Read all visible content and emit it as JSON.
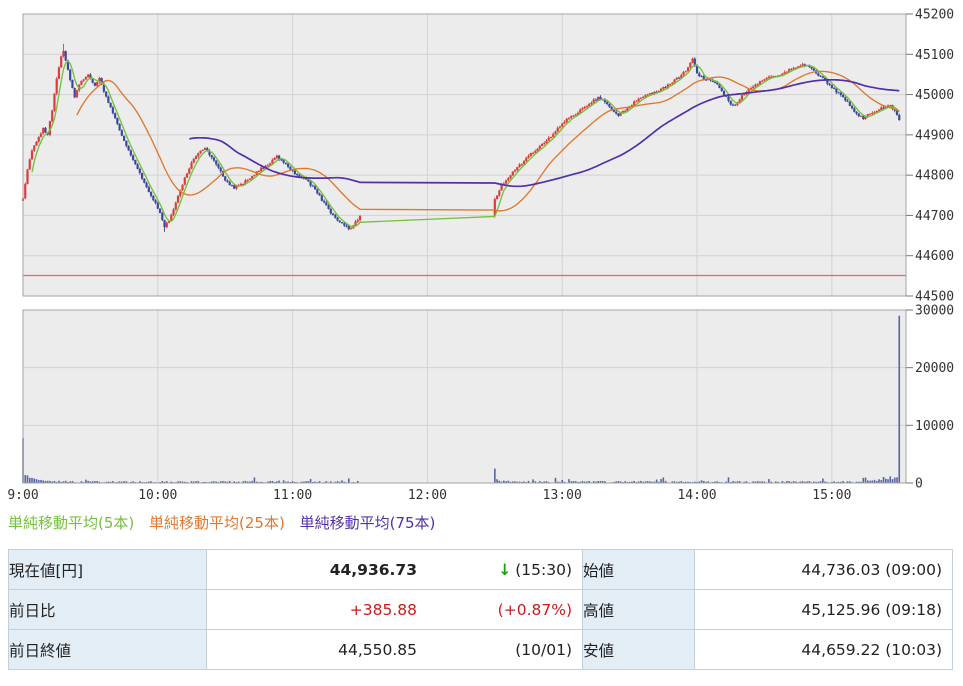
{
  "chart_data": {
    "type": "candlestick",
    "interval_minutes": 1,
    "grid": true,
    "session_minutes": [
      [
        0,
        150
      ],
      [
        210,
        390
      ]
    ],
    "session_times": [
      [
        "09:00",
        "11:30"
      ],
      [
        "12:30",
        "15:30"
      ]
    ],
    "x_ticks": [
      {
        "label": "9:00",
        "minute": 0
      },
      {
        "label": "10:00",
        "minute": 60
      },
      {
        "label": "11:00",
        "minute": 120
      },
      {
        "label": "12:00",
        "minute": 180
      },
      {
        "label": "13:00",
        "minute": 240
      },
      {
        "label": "14:00",
        "minute": 300
      },
      {
        "label": "15:00",
        "minute": 360
      }
    ],
    "price_axis": {
      "max": 45200,
      "min": 44500,
      "tick_step": 100,
      "ticks": [
        45200,
        45100,
        45000,
        44900,
        44800,
        44700,
        44600,
        44500
      ]
    },
    "volume_axis": {
      "max": 30000,
      "ticks": [
        30000,
        20000,
        10000,
        0
      ]
    },
    "prev_close": 44550.85,
    "key_points": {
      "open": 44736.03,
      "open_time": "09:00",
      "high": 45125.96,
      "high_time": "09:18",
      "high_minute": 18,
      "low": 44659.22,
      "low_time": "10:03",
      "low_minute": 63,
      "close": 44936.73,
      "close_time": "15:30"
    },
    "close_anchors": [
      [
        0,
        44745
      ],
      [
        2,
        44815
      ],
      [
        4,
        44860
      ],
      [
        7,
        44895
      ],
      [
        9,
        44915
      ],
      [
        11,
        44902
      ],
      [
        13,
        44962
      ],
      [
        15,
        45040
      ],
      [
        17,
        45092
      ],
      [
        18,
        45106
      ],
      [
        19,
        45082
      ],
      [
        21,
        45038
      ],
      [
        23,
        44995
      ],
      [
        26,
        45036
      ],
      [
        29,
        45048
      ],
      [
        32,
        45022
      ],
      [
        34,
        45040
      ],
      [
        36,
        45008
      ],
      [
        38,
        44978
      ],
      [
        41,
        44944
      ],
      [
        44,
        44896
      ],
      [
        47,
        44864
      ],
      [
        50,
        44824
      ],
      [
        53,
        44792
      ],
      [
        56,
        44760
      ],
      [
        59,
        44728
      ],
      [
        61,
        44704
      ],
      [
        63,
        44672
      ],
      [
        65,
        44686
      ],
      [
        67,
        44716
      ],
      [
        70,
        44762
      ],
      [
        73,
        44806
      ],
      [
        76,
        44840
      ],
      [
        79,
        44862
      ],
      [
        81,
        44868
      ],
      [
        84,
        44842
      ],
      [
        87,
        44818
      ],
      [
        90,
        44788
      ],
      [
        94,
        44768
      ],
      [
        98,
        44780
      ],
      [
        102,
        44798
      ],
      [
        106,
        44816
      ],
      [
        110,
        44830
      ],
      [
        113,
        44846
      ],
      [
        116,
        44832
      ],
      [
        119,
        44816
      ],
      [
        122,
        44800
      ],
      [
        126,
        44788
      ],
      [
        130,
        44764
      ],
      [
        134,
        44730
      ],
      [
        138,
        44700
      ],
      [
        142,
        44680
      ],
      [
        145,
        44668
      ],
      [
        147,
        44674
      ],
      [
        150,
        44700
      ],
      [
        210,
        44738
      ],
      [
        213,
        44775
      ],
      [
        216,
        44795
      ],
      [
        220,
        44818
      ],
      [
        224,
        44842
      ],
      [
        228,
        44862
      ],
      [
        232,
        44880
      ],
      [
        236,
        44902
      ],
      [
        240,
        44928
      ],
      [
        244,
        44946
      ],
      [
        248,
        44960
      ],
      [
        252,
        44978
      ],
      [
        256,
        44992
      ],
      [
        259,
        44984
      ],
      [
        262,
        44962
      ],
      [
        265,
        44948
      ],
      [
        268,
        44962
      ],
      [
        272,
        44982
      ],
      [
        276,
        44996
      ],
      [
        280,
        45002
      ],
      [
        284,
        45012
      ],
      [
        288,
        45028
      ],
      [
        292,
        45044
      ],
      [
        295,
        45060
      ],
      [
        297,
        45078
      ],
      [
        298,
        45092
      ],
      [
        300,
        45052
      ],
      [
        303,
        45040
      ],
      [
        306,
        45034
      ],
      [
        309,
        45024
      ],
      [
        312,
        45002
      ],
      [
        315,
        44978
      ],
      [
        317,
        44972
      ],
      [
        320,
        44998
      ],
      [
        324,
        45018
      ],
      [
        328,
        45032
      ],
      [
        332,
        45042
      ],
      [
        336,
        45048
      ],
      [
        340,
        45058
      ],
      [
        344,
        45068
      ],
      [
        347,
        45076
      ],
      [
        350,
        45068
      ],
      [
        353,
        45054
      ],
      [
        356,
        45040
      ],
      [
        359,
        45022
      ],
      [
        362,
        45008
      ],
      [
        365,
        44996
      ],
      [
        368,
        44972
      ],
      [
        371,
        44950
      ],
      [
        374,
        44942
      ],
      [
        377,
        44952
      ],
      [
        380,
        44962
      ],
      [
        383,
        44970
      ],
      [
        386,
        44972
      ],
      [
        388,
        44962
      ],
      [
        390,
        44936.73
      ]
    ],
    "volume_profile": {
      "open_auction": 7800,
      "early_decay_peak": 1450,
      "early_decay_tau": 5,
      "base_min": 60,
      "base_max": 360,
      "afternoon_open": 2500,
      "close_auction": 29000
    },
    "series_colors": {
      "up": "#dc3c3c",
      "down": "#3c469c",
      "volume": "#5565a5",
      "prev_close_line": "#f55f5f",
      "plot_bg": "#ececec",
      "grid": "#d2d2d2",
      "border": "#a3a3a3"
    },
    "moving_averages": [
      {
        "label": "単純移動平均(5本)",
        "period": 5,
        "color": "#74c13c"
      },
      {
        "label": "単純移動平均(25本)",
        "period": 25,
        "color": "#e0782d"
      },
      {
        "label": "単純移動平均(75本)",
        "period": 75,
        "color": "#5230a8"
      }
    ]
  },
  "table": {
    "colors": {
      "change_red": "#cc1a1a",
      "arrow_green": "#18a018"
    },
    "rows_left": [
      {
        "label": "現在値[円]",
        "value": "44,936.73",
        "arrow": "↓",
        "annotation": "(15:30)"
      },
      {
        "label": "前日比",
        "value": "+385.88",
        "annotation": "(+0.87%)"
      },
      {
        "label": "前日終値",
        "value": "44,550.85",
        "annotation": "(10/01)"
      }
    ],
    "rows_right": [
      {
        "label": "始値",
        "value": "44,736.03 (09:00)"
      },
      {
        "label": "高値",
        "value": "45,125.96 (09:18)"
      },
      {
        "label": "安値",
        "value": "44,659.22 (10:03)"
      }
    ]
  }
}
